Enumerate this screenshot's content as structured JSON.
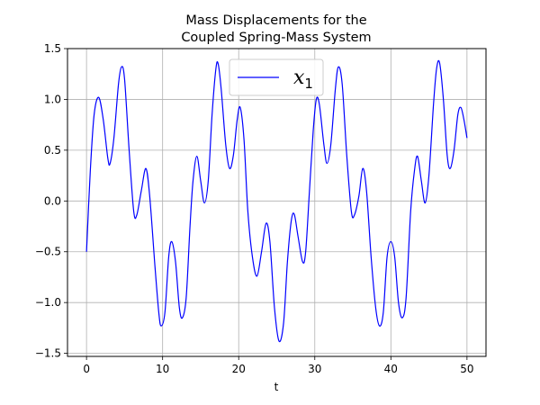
{
  "chart_data": {
    "type": "line",
    "title_line1": "Mass Displacements for the",
    "title_line2": "Coupled Spring-Mass System",
    "xlabel": "t",
    "ylabel": "",
    "xlim": [
      -2.5,
      52.5
    ],
    "ylim": [
      -1.53,
      1.5
    ],
    "x_ticks": [
      0,
      10,
      20,
      30,
      40,
      50
    ],
    "y_ticks": [
      -1.5,
      -1.0,
      -0.5,
      0.0,
      0.5,
      1.0,
      1.5
    ],
    "x_tick_labels": [
      "0",
      "10",
      "20",
      "30",
      "40",
      "50"
    ],
    "y_tick_labels": [
      "−1.5",
      "−1.0",
      "−0.5",
      "0.0",
      "0.5",
      "1.0",
      "1.5"
    ],
    "grid": true,
    "legend_position": "top-center",
    "series": [
      {
        "name": "x",
        "name_subscript": "1",
        "color": "#0000ff",
        "points": [
          [
            0.0,
            -0.5
          ],
          [
            0.5,
            0.3
          ],
          [
            1.0,
            0.85
          ],
          [
            1.6,
            1.02
          ],
          [
            2.2,
            0.8
          ],
          [
            2.8,
            0.42
          ],
          [
            3.1,
            0.37
          ],
          [
            3.6,
            0.62
          ],
          [
            4.2,
            1.15
          ],
          [
            4.6,
            1.32
          ],
          [
            5.0,
            1.2
          ],
          [
            5.6,
            0.5
          ],
          [
            6.2,
            -0.1
          ],
          [
            6.6,
            -0.14
          ],
          [
            7.2,
            0.1
          ],
          [
            7.8,
            0.32
          ],
          [
            8.3,
            0.05
          ],
          [
            9.0,
            -0.65
          ],
          [
            9.5,
            -1.1
          ],
          [
            9.8,
            -1.23
          ],
          [
            10.3,
            -1.1
          ],
          [
            10.8,
            -0.55
          ],
          [
            11.2,
            -0.4
          ],
          [
            11.7,
            -0.6
          ],
          [
            12.2,
            -1.05
          ],
          [
            12.6,
            -1.15
          ],
          [
            13.1,
            -0.95
          ],
          [
            13.6,
            -0.25
          ],
          [
            14.0,
            0.2
          ],
          [
            14.5,
            0.44
          ],
          [
            15.0,
            0.2
          ],
          [
            15.5,
            -0.02
          ],
          [
            16.0,
            0.2
          ],
          [
            16.5,
            0.85
          ],
          [
            17.0,
            1.3
          ],
          [
            17.3,
            1.35
          ],
          [
            17.7,
            1.1
          ],
          [
            18.3,
            0.55
          ],
          [
            18.8,
            0.32
          ],
          [
            19.3,
            0.45
          ],
          [
            19.8,
            0.8
          ],
          [
            20.2,
            0.92
          ],
          [
            20.7,
            0.6
          ],
          [
            21.2,
            -0.1
          ],
          [
            21.8,
            -0.55
          ],
          [
            22.4,
            -0.74
          ],
          [
            23.0,
            -0.5
          ],
          [
            23.6,
            -0.22
          ],
          [
            24.1,
            -0.4
          ],
          [
            24.7,
            -1.05
          ],
          [
            25.3,
            -1.38
          ],
          [
            25.9,
            -1.2
          ],
          [
            26.4,
            -0.6
          ],
          [
            26.9,
            -0.2
          ],
          [
            27.3,
            -0.13
          ],
          [
            27.8,
            -0.35
          ],
          [
            28.4,
            -0.6
          ],
          [
            28.8,
            -0.5
          ],
          [
            29.3,
            0.1
          ],
          [
            29.8,
            0.7
          ],
          [
            30.2,
            1.0
          ],
          [
            30.6,
            0.95
          ],
          [
            31.2,
            0.55
          ],
          [
            31.6,
            0.37
          ],
          [
            32.1,
            0.55
          ],
          [
            32.7,
            1.1
          ],
          [
            33.1,
            1.32
          ],
          [
            33.6,
            1.15
          ],
          [
            34.2,
            0.45
          ],
          [
            34.8,
            -0.1
          ],
          [
            35.2,
            -0.14
          ],
          [
            35.8,
            0.05
          ],
          [
            36.3,
            0.32
          ],
          [
            36.8,
            0.1
          ],
          [
            37.4,
            -0.55
          ],
          [
            38.0,
            -1.05
          ],
          [
            38.5,
            -1.23
          ],
          [
            39.0,
            -1.1
          ],
          [
            39.5,
            -0.55
          ],
          [
            40.0,
            -0.4
          ],
          [
            40.5,
            -0.55
          ],
          [
            41.0,
            -1.0
          ],
          [
            41.5,
            -1.15
          ],
          [
            42.0,
            -0.95
          ],
          [
            42.6,
            -0.1
          ],
          [
            43.1,
            0.3
          ],
          [
            43.5,
            0.44
          ],
          [
            44.0,
            0.2
          ],
          [
            44.5,
            -0.02
          ],
          [
            45.0,
            0.25
          ],
          [
            45.6,
            0.95
          ],
          [
            46.0,
            1.3
          ],
          [
            46.4,
            1.36
          ],
          [
            46.9,
            1.0
          ],
          [
            47.4,
            0.45
          ],
          [
            47.8,
            0.32
          ],
          [
            48.3,
            0.5
          ],
          [
            48.8,
            0.85
          ],
          [
            49.2,
            0.92
          ],
          [
            49.6,
            0.8
          ],
          [
            50.0,
            0.62
          ]
        ]
      }
    ]
  }
}
